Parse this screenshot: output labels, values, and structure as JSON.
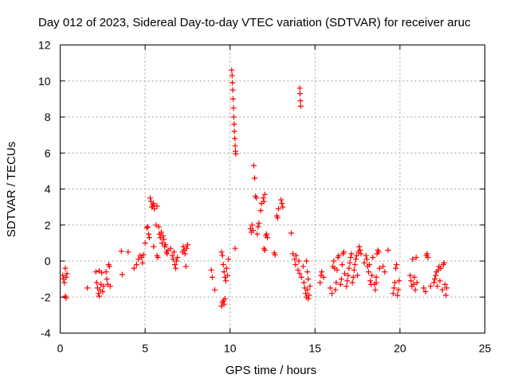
{
  "chart_data": {
    "type": "scatter",
    "title": "Day 012 of 2023, Sidereal Day-to-day VTEC variation (SDTVAR) for receiver aruc",
    "xlabel": "GPS time / hours",
    "ylabel": "SDTVAR / TECUs",
    "xlim": [
      0,
      25
    ],
    "ylim": [
      -4,
      12
    ],
    "xticks": [
      0,
      5,
      10,
      15,
      20,
      25
    ],
    "xtick_labels": [
      "0",
      "5",
      "10",
      "15",
      "20",
      "25"
    ],
    "yticks": [
      -4,
      -2,
      0,
      2,
      4,
      6,
      8,
      10,
      12
    ],
    "ytick_labels": [
      "-4",
      "-2",
      "0",
      "2",
      "4",
      "6",
      "8",
      "10",
      "12"
    ],
    "grid": true,
    "marker": "+",
    "series": [
      {
        "name": "SDTVAR",
        "color": "#ff0000",
        "points": [
          [
            0.15,
            -0.8
          ],
          [
            0.2,
            -1.0
          ],
          [
            0.25,
            -1.2
          ],
          [
            0.3,
            -0.4
          ],
          [
            0.35,
            -0.9
          ],
          [
            0.3,
            -1.95
          ],
          [
            0.35,
            -2.05
          ],
          [
            0.4,
            -0.7
          ],
          [
            1.6,
            -1.5
          ],
          [
            2.1,
            -0.6
          ],
          [
            2.15,
            -1.2
          ],
          [
            2.2,
            -1.5
          ],
          [
            2.25,
            -1.8
          ],
          [
            2.3,
            -1.95
          ],
          [
            2.35,
            -1.6
          ],
          [
            2.4,
            -1.3
          ],
          [
            2.3,
            -0.55
          ],
          [
            2.45,
            -0.65
          ],
          [
            2.5,
            -1.7
          ],
          [
            2.55,
            -1.4
          ],
          [
            2.7,
            -0.6
          ],
          [
            2.75,
            -1.0
          ],
          [
            2.8,
            -1.3
          ],
          [
            2.85,
            -0.2
          ],
          [
            2.9,
            -0.3
          ],
          [
            2.95,
            -1.4
          ],
          [
            3.6,
            0.55
          ],
          [
            3.65,
            -0.75
          ],
          [
            4.0,
            0.5
          ],
          [
            4.35,
            -0.4
          ],
          [
            4.5,
            -0.2
          ],
          [
            4.6,
            0.1
          ],
          [
            4.7,
            0.3
          ],
          [
            4.8,
            0.2
          ],
          [
            4.85,
            -0.1
          ],
          [
            4.9,
            0.35
          ],
          [
            5.0,
            1.0
          ],
          [
            5.1,
            1.85
          ],
          [
            5.15,
            1.9
          ],
          [
            5.2,
            1.5
          ],
          [
            5.25,
            1.3
          ],
          [
            5.3,
            3.5
          ],
          [
            5.35,
            3.3
          ],
          [
            5.4,
            3.0
          ],
          [
            5.45,
            3.1
          ],
          [
            5.5,
            3.2
          ],
          [
            5.55,
            2.9
          ],
          [
            5.5,
            0.8
          ],
          [
            5.7,
            3.05
          ],
          [
            5.65,
            2.0
          ],
          [
            5.7,
            0.3
          ],
          [
            5.75,
            0.2
          ],
          [
            5.8,
            1.9
          ],
          [
            5.85,
            1.5
          ],
          [
            5.9,
            1.3
          ],
          [
            5.95,
            1.6
          ],
          [
            6.0,
            1.0
          ],
          [
            6.05,
            1.4
          ],
          [
            6.1,
            1.2
          ],
          [
            6.15,
            0.8
          ],
          [
            6.2,
            0.9
          ],
          [
            6.25,
            0.5
          ],
          [
            6.3,
            0.4
          ],
          [
            6.35,
            0.6
          ],
          [
            6.5,
            0.7
          ],
          [
            6.6,
            0.3
          ],
          [
            6.65,
            0.1
          ],
          [
            6.7,
            0.5
          ],
          [
            6.75,
            -0.2
          ],
          [
            6.8,
            -0.4
          ],
          [
            6.85,
            0.0
          ],
          [
            6.9,
            0.2
          ],
          [
            7.2,
            0.5
          ],
          [
            7.25,
            0.8
          ],
          [
            7.3,
            0.6
          ],
          [
            7.35,
            0.4
          ],
          [
            7.4,
            -0.3
          ],
          [
            7.45,
            0.7
          ],
          [
            7.5,
            0.9
          ],
          [
            8.9,
            -0.5
          ],
          [
            8.95,
            -0.9
          ],
          [
            9.1,
            -1.6
          ],
          [
            9.5,
            -2.5
          ],
          [
            9.55,
            -2.3
          ],
          [
            9.6,
            -2.2
          ],
          [
            9.65,
            -2.4
          ],
          [
            9.7,
            -2.1
          ],
          [
            9.5,
            0.5
          ],
          [
            9.55,
            0.3
          ],
          [
            9.6,
            -0.2
          ],
          [
            9.65,
            -0.6
          ],
          [
            9.7,
            -0.9
          ],
          [
            9.75,
            -1.1
          ],
          [
            9.8,
            -0.4
          ],
          [
            9.85,
            -0.8
          ],
          [
            9.9,
            0.1
          ],
          [
            10.1,
            10.6
          ],
          [
            10.12,
            10.3
          ],
          [
            10.14,
            9.9
          ],
          [
            10.16,
            9.5
          ],
          [
            10.18,
            9.0
          ],
          [
            10.2,
            8.5
          ],
          [
            10.22,
            8.0
          ],
          [
            10.24,
            7.6
          ],
          [
            10.26,
            7.2
          ],
          [
            10.28,
            6.8
          ],
          [
            10.3,
            6.4
          ],
          [
            10.32,
            6.1
          ],
          [
            10.34,
            5.95
          ],
          [
            10.3,
            0.7
          ],
          [
            11.2,
            1.8
          ],
          [
            11.25,
            1.6
          ],
          [
            11.3,
            2.0
          ],
          [
            11.35,
            1.7
          ],
          [
            11.4,
            5.3
          ],
          [
            11.45,
            4.6
          ],
          [
            11.5,
            3.6
          ],
          [
            11.55,
            3.5
          ],
          [
            11.6,
            1.5
          ],
          [
            11.65,
            1.9
          ],
          [
            11.7,
            2.1
          ],
          [
            11.8,
            2.8
          ],
          [
            11.85,
            3.2
          ],
          [
            11.95,
            3.5
          ],
          [
            12.0,
            3.3
          ],
          [
            12.05,
            3.7
          ],
          [
            12.1,
            1.4
          ],
          [
            12.15,
            1.5
          ],
          [
            12.2,
            1.3
          ],
          [
            12.0,
            0.7
          ],
          [
            12.05,
            0.6
          ],
          [
            12.6,
            0.45
          ],
          [
            12.65,
            0.35
          ],
          [
            12.75,
            2.5
          ],
          [
            12.8,
            2.4
          ],
          [
            12.85,
            2.9
          ],
          [
            13.0,
            3.4
          ],
          [
            13.05,
            3.2
          ],
          [
            13.1,
            3.0
          ],
          [
            13.6,
            1.55
          ],
          [
            13.7,
            0.4
          ],
          [
            13.8,
            0.1
          ],
          [
            13.85,
            -0.2
          ],
          [
            13.9,
            0.3
          ],
          [
            14.0,
            -0.5
          ],
          [
            14.05,
            0.0
          ],
          [
            14.1,
            -0.7
          ],
          [
            14.2,
            -0.9
          ],
          [
            14.3,
            -0.3
          ],
          [
            14.35,
            -1.2
          ],
          [
            14.4,
            -1.5
          ],
          [
            14.1,
            9.6
          ],
          [
            14.12,
            9.3
          ],
          [
            14.14,
            8.9
          ],
          [
            14.16,
            8.6
          ],
          [
            14.45,
            -1.8
          ],
          [
            14.5,
            -2.0
          ],
          [
            14.55,
            -1.6
          ],
          [
            14.6,
            -2.1
          ],
          [
            14.65,
            -1.9
          ],
          [
            14.7,
            -1.4
          ],
          [
            14.5,
            0.0
          ],
          [
            14.55,
            -0.6
          ],
          [
            14.6,
            -1.0
          ],
          [
            15.3,
            -1.2
          ],
          [
            15.35,
            -0.8
          ],
          [
            15.4,
            -0.6
          ],
          [
            15.5,
            -0.9
          ],
          [
            15.9,
            -1.5
          ],
          [
            16.0,
            -1.8
          ],
          [
            16.05,
            -0.3
          ],
          [
            16.1,
            0.0
          ],
          [
            16.15,
            -0.4
          ],
          [
            16.2,
            -1.6
          ],
          [
            16.25,
            -1.2
          ],
          [
            16.3,
            -0.5
          ],
          [
            16.35,
            0.2
          ],
          [
            16.4,
            0.3
          ],
          [
            16.5,
            -1.3
          ],
          [
            16.55,
            -1.0
          ],
          [
            16.6,
            -0.2
          ],
          [
            16.65,
            0.4
          ],
          [
            16.7,
            0.5
          ],
          [
            16.75,
            -0.7
          ],
          [
            16.85,
            -1.4
          ],
          [
            16.9,
            -1.1
          ],
          [
            16.95,
            -0.8
          ],
          [
            17.0,
            -0.4
          ],
          [
            17.05,
            -0.1
          ],
          [
            17.1,
            0.2
          ],
          [
            17.15,
            0.4
          ],
          [
            17.2,
            -1.2
          ],
          [
            17.25,
            -0.9
          ],
          [
            17.3,
            -0.5
          ],
          [
            17.35,
            -0.2
          ],
          [
            17.4,
            0.1
          ],
          [
            17.45,
            0.3
          ],
          [
            17.5,
            -0.8
          ],
          [
            17.55,
            0.5
          ],
          [
            17.6,
            0.8
          ],
          [
            17.65,
            0.6
          ],
          [
            17.7,
            0.4
          ],
          [
            17.9,
            -0.1
          ],
          [
            18.0,
            0.3
          ],
          [
            18.05,
            0.1
          ],
          [
            18.1,
            -0.3
          ],
          [
            18.15,
            -0.6
          ],
          [
            18.2,
            -0.2
          ],
          [
            18.25,
            -1.1
          ],
          [
            18.3,
            -1.3
          ],
          [
            18.35,
            -0.8
          ],
          [
            18.4,
            0.2
          ],
          [
            18.5,
            -1.3
          ],
          [
            18.55,
            -1.6
          ],
          [
            18.6,
            -1.2
          ],
          [
            18.65,
            0.4
          ],
          [
            18.7,
            0.6
          ],
          [
            18.75,
            0.5
          ],
          [
            18.8,
            -0.4
          ],
          [
            18.6,
            -0.9
          ],
          [
            19.0,
            -0.3
          ],
          [
            19.1,
            -0.6
          ],
          [
            19.3,
            0.6
          ],
          [
            19.6,
            -1.8
          ],
          [
            19.65,
            -1.5
          ],
          [
            19.7,
            -1.2
          ],
          [
            19.75,
            -0.4
          ],
          [
            19.8,
            -0.2
          ],
          [
            19.85,
            -1.9
          ],
          [
            19.9,
            -1.6
          ],
          [
            19.95,
            -1.1
          ],
          [
            20.6,
            -0.8
          ],
          [
            20.65,
            -1.1
          ],
          [
            20.7,
            -1.4
          ],
          [
            20.75,
            0.1
          ],
          [
            20.8,
            -1.3
          ],
          [
            20.85,
            -0.9
          ],
          [
            20.9,
            -1.6
          ],
          [
            20.95,
            0.2
          ],
          [
            21.0,
            -1.2
          ],
          [
            21.4,
            -1.5
          ],
          [
            21.5,
            -1.7
          ],
          [
            21.55,
            0.3
          ],
          [
            21.6,
            0.4
          ],
          [
            21.65,
            0.2
          ],
          [
            21.8,
            -1.4
          ],
          [
            22.0,
            -1.2
          ],
          [
            22.05,
            -1.0
          ],
          [
            22.1,
            -0.8
          ],
          [
            22.15,
            -0.6
          ],
          [
            22.2,
            -1.4
          ],
          [
            22.25,
            -0.5
          ],
          [
            22.3,
            -0.3
          ],
          [
            22.35,
            -1.1
          ],
          [
            22.4,
            -0.4
          ],
          [
            22.5,
            -1.6
          ],
          [
            22.55,
            -0.2
          ],
          [
            22.6,
            -0.1
          ],
          [
            22.65,
            -1.3
          ],
          [
            22.7,
            -1.9
          ],
          [
            22.75,
            -1.5
          ]
        ]
      }
    ]
  }
}
